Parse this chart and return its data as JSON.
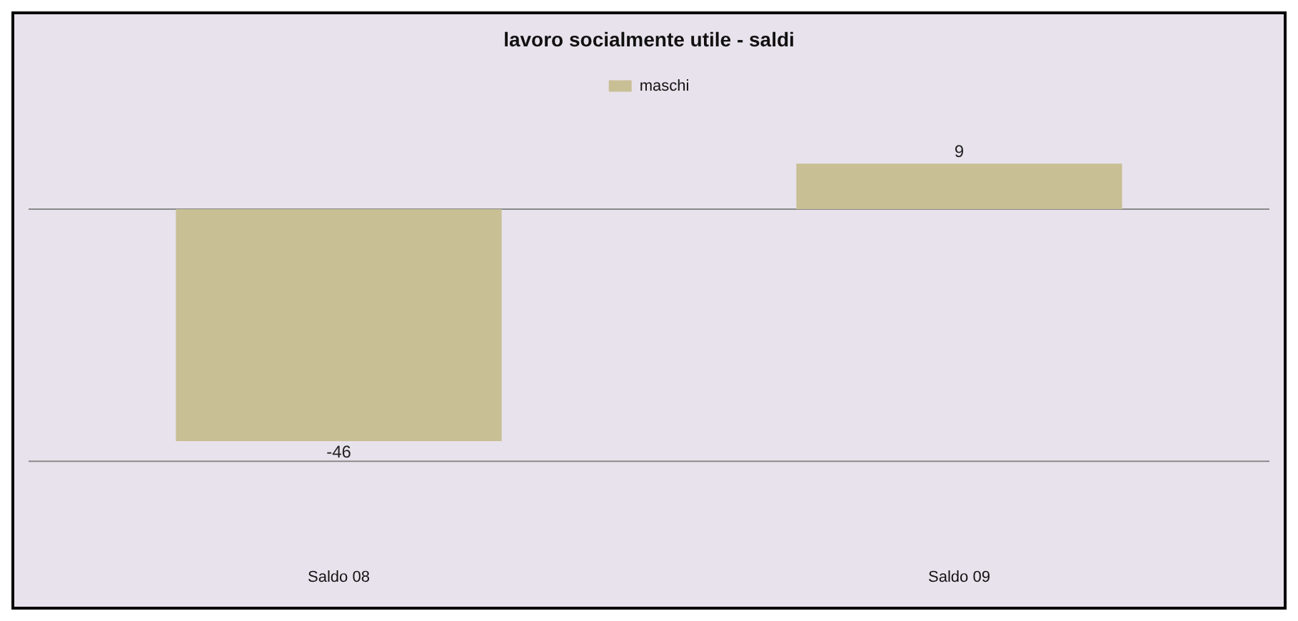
{
  "chart_data": {
    "type": "bar",
    "title": "lavoro socialmente utile - saldi",
    "categories": [
      "Saldo 08",
      "Saldo 09"
    ],
    "series": [
      {
        "name": "maschi",
        "color": "#c8bf95",
        "values": [
          -46,
          9
        ]
      }
    ],
    "ref_lines": [
      {
        "axis": "y",
        "value": 0,
        "color": "#8a8a8a"
      },
      {
        "axis": "y",
        "value": -50,
        "color": "#8a8a8a"
      }
    ],
    "tick_labels": "x",
    "legend": "top",
    "data_labels": true
  }
}
